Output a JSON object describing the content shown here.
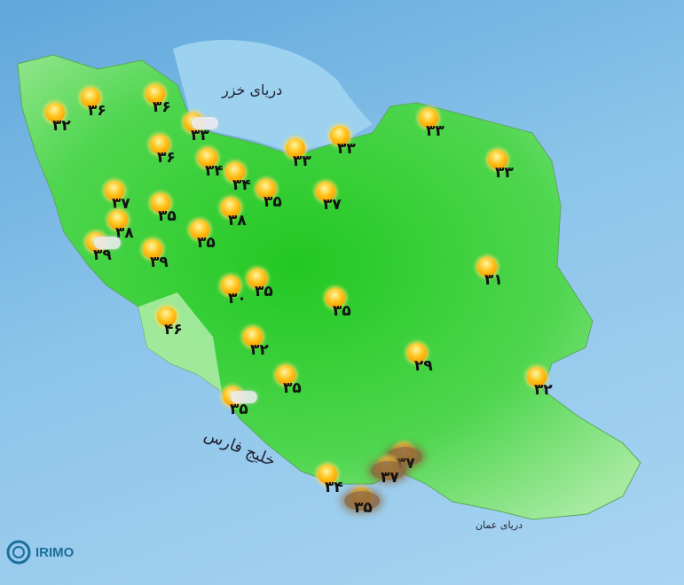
{
  "seas": {
    "caspian": "دریای خزر",
    "persian_gulf": "خلیج فارس",
    "oman_sea": "دریای عمان"
  },
  "logo": {
    "text": "IRIMO"
  },
  "colors": {
    "land": "#3ccf3c",
    "sea": "#8cc4ea",
    "sun": "#ffb400",
    "dust": "#8c643c"
  },
  "stations": [
    {
      "icon": "sunny",
      "temp": "۳۲"
    },
    {
      "icon": "sunny",
      "temp": "۳۶"
    },
    {
      "icon": "sunny",
      "temp": "۳۶"
    },
    {
      "icon": "partly-cloudy",
      "temp": "۳۳"
    },
    {
      "icon": "sunny",
      "temp": "۳۶"
    },
    {
      "icon": "sunny",
      "temp": "۳۴"
    },
    {
      "icon": "sunny",
      "temp": "۳۴"
    },
    {
      "icon": "sunny",
      "temp": "۳۳"
    },
    {
      "icon": "sunny",
      "temp": "۳۳"
    },
    {
      "icon": "sunny",
      "temp": "۳۳"
    },
    {
      "icon": "sunny",
      "temp": "۳۳"
    },
    {
      "icon": "sunny",
      "temp": "۳۵"
    },
    {
      "icon": "sunny",
      "temp": "۳۷"
    },
    {
      "icon": "sunny",
      "temp": "۳۷"
    },
    {
      "icon": "sunny",
      "temp": "۳۵"
    },
    {
      "icon": "sunny",
      "temp": "۳۸"
    },
    {
      "icon": "sunny",
      "temp": "۳۸"
    },
    {
      "icon": "sunny",
      "temp": "۳۵"
    },
    {
      "icon": "partly-cloudy",
      "temp": "۳۹"
    },
    {
      "icon": "sunny",
      "temp": "۳۹"
    },
    {
      "icon": "sunny",
      "temp": "۳۰"
    },
    {
      "icon": "sunny",
      "temp": "۳۵"
    },
    {
      "icon": "sunny",
      "temp": "۳۵"
    },
    {
      "icon": "sunny",
      "temp": "۳۱"
    },
    {
      "icon": "sunny",
      "temp": "۴۶"
    },
    {
      "icon": "sunny",
      "temp": "۳۲"
    },
    {
      "icon": "sunny",
      "temp": "۳۵"
    },
    {
      "icon": "sunny",
      "temp": "۲۹"
    },
    {
      "icon": "sunny",
      "temp": "۳۲"
    },
    {
      "icon": "partly-cloudy",
      "temp": "۳۵"
    },
    {
      "icon": "sunny",
      "temp": "۳۴"
    },
    {
      "icon": "dust",
      "temp": "۳۷"
    },
    {
      "icon": "dust",
      "temp": "۳۷"
    },
    {
      "icon": "dust",
      "temp": "۳۵"
    }
  ]
}
